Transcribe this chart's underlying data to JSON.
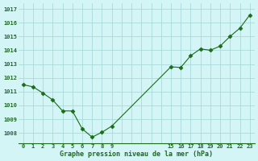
{
  "x": [
    0,
    1,
    2,
    3,
    4,
    5,
    6,
    7,
    8,
    9,
    15,
    16,
    17,
    18,
    19,
    20,
    21,
    22,
    23
  ],
  "y": [
    1011.5,
    1011.35,
    1010.9,
    1010.4,
    1009.6,
    1009.6,
    1008.3,
    1007.7,
    1008.05,
    1008.5,
    1012.8,
    1012.75,
    1013.6,
    1014.1,
    1014.0,
    1014.3,
    1015.0,
    1015.6,
    1016.55
  ],
  "line_color": "#1a6b1a",
  "marker": "D",
  "marker_size": 2.5,
  "bg_color": "#d4f5f5",
  "grid_color": "#aadada",
  "tick_color": "#1a6b1a",
  "label_color": "#1a6b1a",
  "xlabel": "Graphe pression niveau de la mer (hPa)",
  "xtick_positions": [
    0,
    1,
    2,
    3,
    4,
    5,
    6,
    7,
    8,
    9,
    15,
    16,
    17,
    18,
    19,
    20,
    21,
    22,
    23
  ],
  "xtick_labels": [
    "0",
    "1",
    "2",
    "3",
    "4",
    "5",
    "6",
    "7",
    "8",
    "9",
    "15",
    "16",
    "17",
    "18",
    "19",
    "20",
    "21",
    "22",
    "23"
  ],
  "yticks": [
    1008,
    1009,
    1010,
    1011,
    1012,
    1013,
    1014,
    1015,
    1016,
    1017
  ],
  "ylim": [
    1007.25,
    1017.4
  ],
  "xlim": [
    -0.5,
    23.5
  ],
  "figsize": [
    3.2,
    2.0
  ],
  "dpi": 100
}
